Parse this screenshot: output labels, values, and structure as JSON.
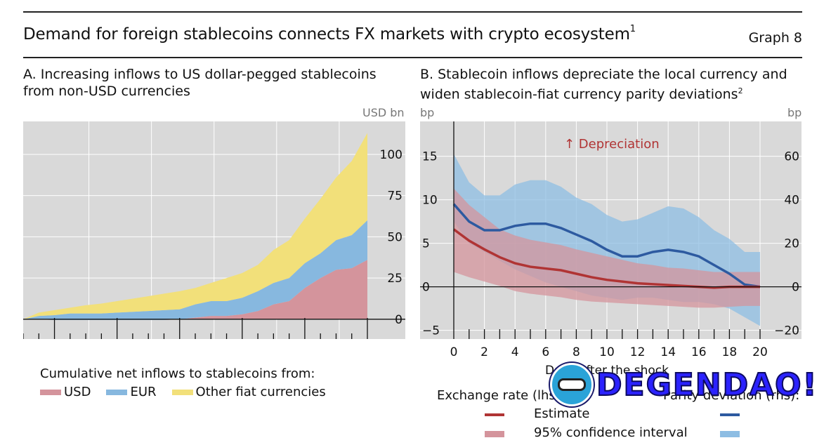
{
  "header": {
    "title": "Demand for foreign stablecoins connects FX markets with crypto ecosystem",
    "title_footnote": "1",
    "graph_label": "Graph 8"
  },
  "panelA": {
    "title_line1": "A. Increasing inflows to US dollar-pegged stablecoins",
    "title_line2": "from non-USD currencies",
    "unit": "USD bn",
    "legend_heading": "Cumulative net inflows to stablecoins from:",
    "legend": [
      {
        "label": "USD",
        "color": "#d4949c"
      },
      {
        "label": "EUR",
        "color": "#87b8df"
      },
      {
        "label": "Other fiat currencies",
        "color": "#f2e07a"
      }
    ]
  },
  "panelB": {
    "title_line1": "B. Stablecoin inflows depreciate the local currency and",
    "title_line2": "widen stablecoin-fiat currency parity deviations",
    "title_footnote": "2",
    "unit_left": "bp",
    "unit_right": "bp",
    "annotation": "↑ Depreciation",
    "xlabel": "Days after the shock",
    "legend_left_heading": "Exchange rate (lhs):",
    "legend_right_heading": "Parity deviation (rhs):",
    "legend_estimate": "Estimate",
    "legend_ci": "95% confidence interval"
  },
  "watermark": {
    "text": "DEGENDAO!"
  },
  "chart_data": [
    {
      "type": "area",
      "stacked": true,
      "x_ticks": [
        "2021",
        "2022",
        "2023",
        "2024",
        "2025"
      ],
      "ylabel": "USD bn",
      "y_axis_side": "right",
      "ylim": [
        -12,
        120
      ],
      "yticks": [
        0,
        25,
        50,
        75,
        100
      ],
      "grid": true,
      "x": [
        2020.0,
        2020.25,
        2020.5,
        2020.75,
        2021.0,
        2021.25,
        2021.5,
        2021.75,
        2022.0,
        2022.25,
        2022.5,
        2022.75,
        2023.0,
        2023.25,
        2023.5,
        2023.75,
        2024.0,
        2024.25,
        2024.5,
        2024.75,
        2025.0,
        2025.25,
        2025.5
      ],
      "series": [
        {
          "name": "USD",
          "color": "#d4949c",
          "values": [
            0,
            0,
            -0.5,
            -0.5,
            -0.5,
            -0.5,
            -0.5,
            -0.5,
            -0.5,
            -0.5,
            0,
            1,
            2,
            2,
            3,
            5,
            9,
            11,
            19,
            25,
            30,
            31,
            36
          ]
        },
        {
          "name": "EUR",
          "color": "#87b8df",
          "values": [
            0,
            2,
            3,
            4,
            4,
            4,
            4.5,
            5,
            5.5,
            6,
            6,
            8,
            9,
            9,
            10,
            12,
            13,
            14,
            15,
            15,
            18,
            20,
            24
          ]
        },
        {
          "name": "Other fiat currencies",
          "color": "#f2e07a",
          "values": [
            0,
            2,
            3,
            3.5,
            5,
            6,
            7,
            8,
            9,
            10,
            11,
            10,
            11,
            14,
            15,
            16,
            20,
            23,
            27,
            33,
            38,
            45,
            53
          ]
        }
      ]
    },
    {
      "type": "line",
      "xlabel": "Days after the shock",
      "x": [
        0,
        1,
        2,
        3,
        4,
        5,
        6,
        7,
        8,
        9,
        10,
        11,
        12,
        13,
        14,
        15,
        16,
        17,
        18,
        19,
        20
      ],
      "xticks": [
        0,
        2,
        4,
        6,
        8,
        10,
        12,
        14,
        16,
        18,
        20
      ],
      "y_left": {
        "label": "bp",
        "ylim": [
          -6,
          19
        ],
        "ticks": [
          -5,
          0,
          5,
          10,
          15
        ]
      },
      "y_right": {
        "label": "bp",
        "ylim": [
          -24,
          76
        ],
        "ticks": [
          -20,
          0,
          20,
          40,
          60
        ]
      },
      "grid": true,
      "series": [
        {
          "name": "Exchange rate (lhs) – Estimate",
          "axis": "left",
          "color": "#b03434",
          "values": [
            6.6,
            5.3,
            4.3,
            3.4,
            2.7,
            2.3,
            2.1,
            1.9,
            1.5,
            1.1,
            0.8,
            0.6,
            0.4,
            0.3,
            0.2,
            0.1,
            0,
            -0.1,
            0,
            0,
            0
          ]
        },
        {
          "name": "Exchange rate (lhs) – 95% CI",
          "axis": "left",
          "color": "#d4949c",
          "lower": [
            1.7,
            1.1,
            0.6,
            0.1,
            -0.5,
            -0.8,
            -1.0,
            -1.2,
            -1.5,
            -1.7,
            -1.8,
            -1.9,
            -2.0,
            -2.1,
            -2.2,
            -2.3,
            -2.4,
            -2.4,
            -2.3,
            -2.2,
            -2.2
          ],
          "upper": [
            11.3,
            9.4,
            8.0,
            6.6,
            5.9,
            5.4,
            5.1,
            4.8,
            4.3,
            3.9,
            3.5,
            3.1,
            2.7,
            2.5,
            2.2,
            2.1,
            1.9,
            1.7,
            1.7,
            1.7,
            1.7
          ]
        },
        {
          "name": "Parity deviation (rhs) – Estimate",
          "axis": "right",
          "color": "#2d5aa0",
          "values": [
            38,
            30,
            26,
            26,
            28,
            29,
            29,
            27,
            24,
            21,
            17,
            14,
            14,
            16,
            17,
            16,
            14,
            10,
            6,
            1,
            0
          ]
        },
        {
          "name": "Parity deviation (rhs) – 95% CI",
          "axis": "right",
          "color": "#8dbde3",
          "lower": [
            30,
            20,
            16,
            12,
            8,
            5,
            2,
            0,
            -2,
            -4,
            -5,
            -6,
            -5,
            -5,
            -6,
            -7,
            -7,
            -8,
            -10,
            -14,
            -18
          ],
          "upper": [
            61,
            48,
            42,
            42,
            47,
            49,
            49,
            46,
            41,
            38,
            33,
            30,
            31,
            34,
            37,
            36,
            32,
            26,
            22,
            16,
            16
          ]
        }
      ]
    }
  ]
}
